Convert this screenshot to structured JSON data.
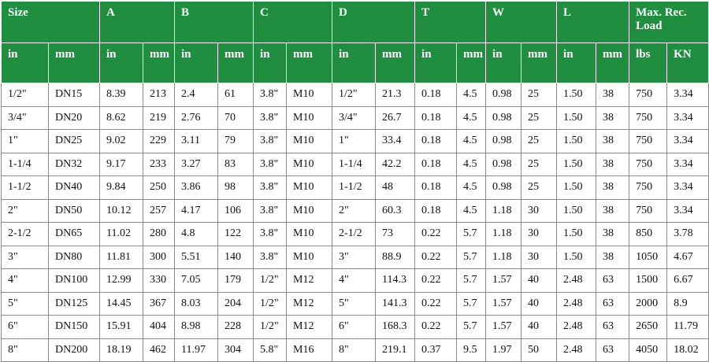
{
  "table": {
    "header_groups": [
      "Size",
      "A",
      "B",
      "C",
      "D",
      "T",
      "W",
      "L",
      "Max. Rec. Load"
    ],
    "units": [
      "in",
      "mm",
      "in",
      "mm",
      "in",
      "mm",
      "in",
      "mm",
      "in",
      "mm",
      "in",
      "mm",
      "in",
      "mm",
      "in",
      "mm",
      "lbs",
      "KN"
    ],
    "rows": [
      [
        "1/2\"",
        "DN15",
        "8.39",
        "213",
        "2.4",
        "61",
        "3.8\"",
        "M10",
        "1/2\"",
        "21.3",
        "0.18",
        "4.5",
        "0.98",
        "25",
        "1.50",
        "38",
        "750",
        "3.34"
      ],
      [
        "3/4\"",
        "DN20",
        "8.62",
        "219",
        "2.76",
        "70",
        "3.8\"",
        "M10",
        "3/4\"",
        "26.7",
        "0.18",
        "4.5",
        "0.98",
        "25",
        "1.50",
        "38",
        "750",
        "3.34"
      ],
      [
        "1\"",
        "DN25",
        "9.02",
        "229",
        "3.11",
        "79",
        "3.8\"",
        "M10",
        "1\"",
        "33.4",
        "0.18",
        "4.5",
        "0.98",
        "25",
        "1.50",
        "38",
        "750",
        "3.34"
      ],
      [
        "1-1/4",
        "DN32",
        "9.17",
        "233",
        "3.27",
        "83",
        "3.8\"",
        "M10",
        "1-1/4",
        "42.2",
        "0.18",
        "4.5",
        "0.98",
        "25",
        "1.50",
        "38",
        "750",
        "3.34"
      ],
      [
        "1-1/2",
        "DN40",
        "9.84",
        "250",
        "3.86",
        "98",
        "3.8\"",
        "M10",
        "1-1/2",
        "48",
        "0.18",
        "4.5",
        "0.98",
        "25",
        "1.50",
        "38",
        "750",
        "3.34"
      ],
      [
        "2\"",
        "DN50",
        "10.12",
        "257",
        "4.17",
        "106",
        "3.8\"",
        "M10",
        "2\"",
        "60.3",
        "0.18",
        "4.5",
        "1.18",
        "30",
        "1.50",
        "38",
        "750",
        "3.34"
      ],
      [
        "2-1/2",
        "DN65",
        "11.02",
        "280",
        "4.8",
        "122",
        "3.8\"",
        "M10",
        "2-1/2",
        "73",
        "0.22",
        "5.7",
        "1.18",
        "30",
        "1.50",
        "38",
        "850",
        "3.78"
      ],
      [
        "3\"",
        "DN80",
        "11.81",
        "300",
        "5.51",
        "140",
        "3.8\"",
        "M10",
        "3\"",
        "88.9",
        "0.22",
        "5.7",
        "1.18",
        "30",
        "1.50",
        "38",
        "1050",
        "4.67"
      ],
      [
        "4\"",
        "DN100",
        "12.99",
        "330",
        "7.05",
        "179",
        "1/2\"",
        "M12",
        "4\"",
        "114.3",
        "0.22",
        "5.7",
        "1.57",
        "40",
        "2.48",
        "63",
        "1500",
        "6.67"
      ],
      [
        "5\"",
        "DN125",
        "14.45",
        "367",
        "8.03",
        "204",
        "1/2\"",
        "M12",
        "5\"",
        "141.3",
        "0.22",
        "5.7",
        "1.57",
        "40",
        "2.48",
        "63",
        "2000",
        "8.9"
      ],
      [
        "6\"",
        "DN150",
        "15.91",
        "404",
        "8.98",
        "228",
        "1/2\"",
        "M12",
        "6\"",
        "168.3",
        "0.22",
        "5.7",
        "1.57",
        "40",
        "2.48",
        "63",
        "2650",
        "11.79"
      ],
      [
        "8\"",
        "DN200",
        "18.19",
        "462",
        "11.97",
        "304",
        "5.8\"",
        "M16",
        "8\"",
        "219.1",
        "0.37",
        "9.5",
        "1.97",
        "50",
        "2.48",
        "63",
        "4050",
        "18.02"
      ]
    ]
  }
}
